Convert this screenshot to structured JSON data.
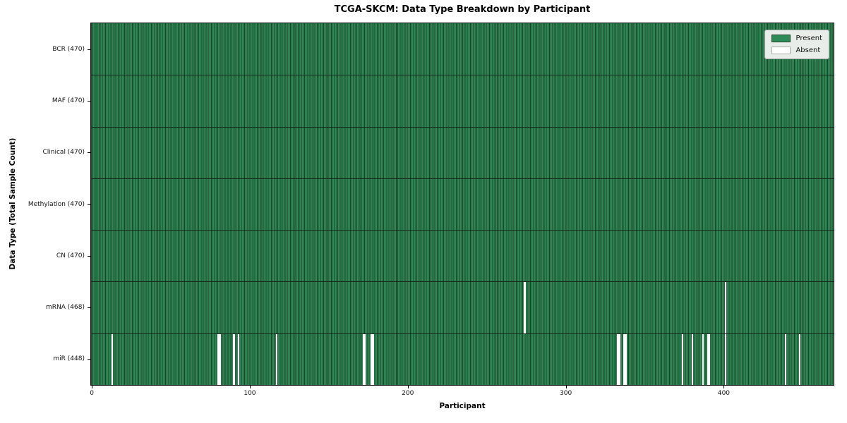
{
  "colors": {
    "present": "#2e8b57",
    "cell_edge": "#1d4329",
    "row_separator": "#16281c",
    "absent": "#ffffff",
    "axis": "#000000",
    "legend_bg": "#e9ede9",
    "legend_border": "#a9aca9",
    "figure_bg": "#ffffff"
  },
  "chart_data": {
    "type": "heatmap",
    "title": "TCGA-SKCM: Data Type Breakdown by Participant",
    "xlabel": "Participant",
    "ylabel": "Data Type (Total Sample Count)",
    "n_participants": 470,
    "x_ticks": [
      0,
      100,
      200,
      300,
      400
    ],
    "legend_entries": [
      "Present",
      "Absent"
    ],
    "legend_position": "upper right",
    "grid": false,
    "value_encoding": {
      "present": 1,
      "absent": 0
    },
    "rows": [
      {
        "data_type": "BCR",
        "label": "BCR (470)",
        "total": 470,
        "absent_participants": []
      },
      {
        "data_type": "MAF",
        "label": "MAF (470)",
        "total": 470,
        "absent_participants": []
      },
      {
        "data_type": "Clinical",
        "label": "Clinical (470)",
        "total": 470,
        "absent_participants": []
      },
      {
        "data_type": "Methylation",
        "label": "Methylation (470)",
        "total": 470,
        "absent_participants": []
      },
      {
        "data_type": "CN",
        "label": "CN (470)",
        "total": 470,
        "absent_participants": []
      },
      {
        "data_type": "mRNA",
        "label": "mRNA (468)",
        "total": 468,
        "absent_participants": [
          274,
          401
        ]
      },
      {
        "data_type": "miR",
        "label": "miR (448)",
        "total": 448,
        "absent_participants": [
          13,
          80,
          81,
          90,
          93,
          117,
          172,
          173,
          177,
          178,
          333,
          334,
          337,
          338,
          374,
          380,
          387,
          390,
          391,
          401,
          439,
          448
        ]
      }
    ]
  }
}
